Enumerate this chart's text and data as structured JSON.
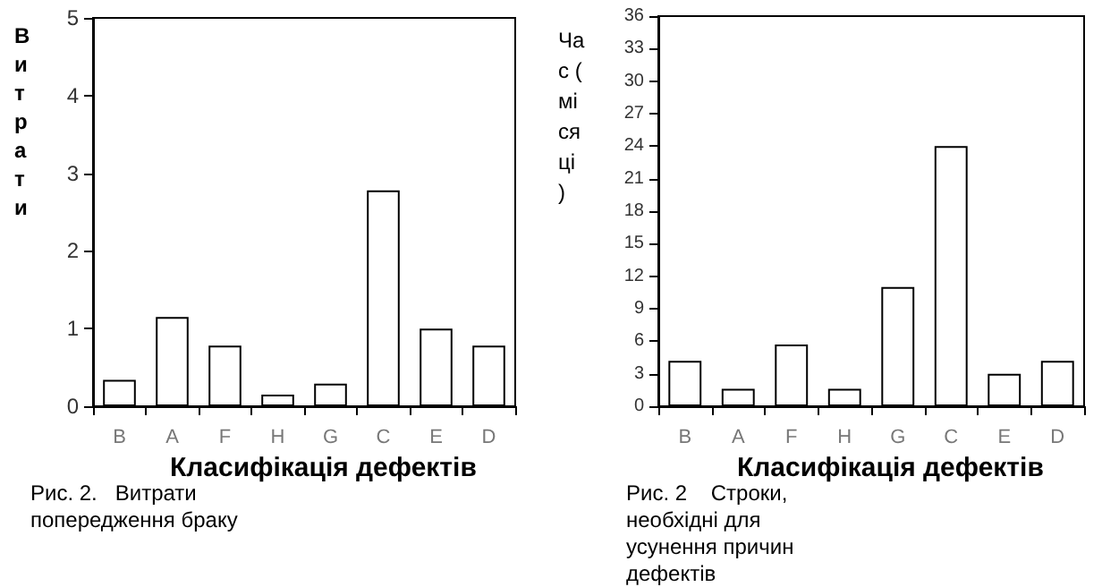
{
  "chart_data": [
    {
      "type": "bar",
      "ylabel": "Витрати",
      "xlabel": "Класифікація дефектів",
      "categories": [
        "B",
        "A",
        "F",
        "H",
        "G",
        "C",
        "E",
        "D"
      ],
      "values": [
        0.34,
        1.15,
        0.78,
        0.15,
        0.29,
        2.78,
        1.0,
        0.78
      ],
      "color": "#ffffff",
      "ylim": [
        0,
        5
      ],
      "yticks": [
        0,
        1,
        2,
        3,
        4,
        5
      ],
      "grid": false,
      "annotations": [
        "Рис. 2.   Витрати попередження браку"
      ]
    },
    {
      "type": "bar",
      "ylabel": "Час (місяці)",
      "xlabel": "Класифікація дефектів",
      "categories": [
        "B",
        "A",
        "F",
        "H",
        "G",
        "C",
        "E",
        "D"
      ],
      "values": [
        4.2,
        1.6,
        5.7,
        1.6,
        11,
        24,
        3,
        4.2
      ],
      "color": "#ffffff",
      "ylim": [
        0,
        36
      ],
      "yticks": [
        0,
        3,
        6,
        9,
        12,
        15,
        18,
        21,
        24,
        27,
        30,
        33,
        36
      ],
      "grid": false,
      "annotations": [
        "Рис. 2    Строки, необхідні для усунення причин  дефектів"
      ]
    }
  ]
}
